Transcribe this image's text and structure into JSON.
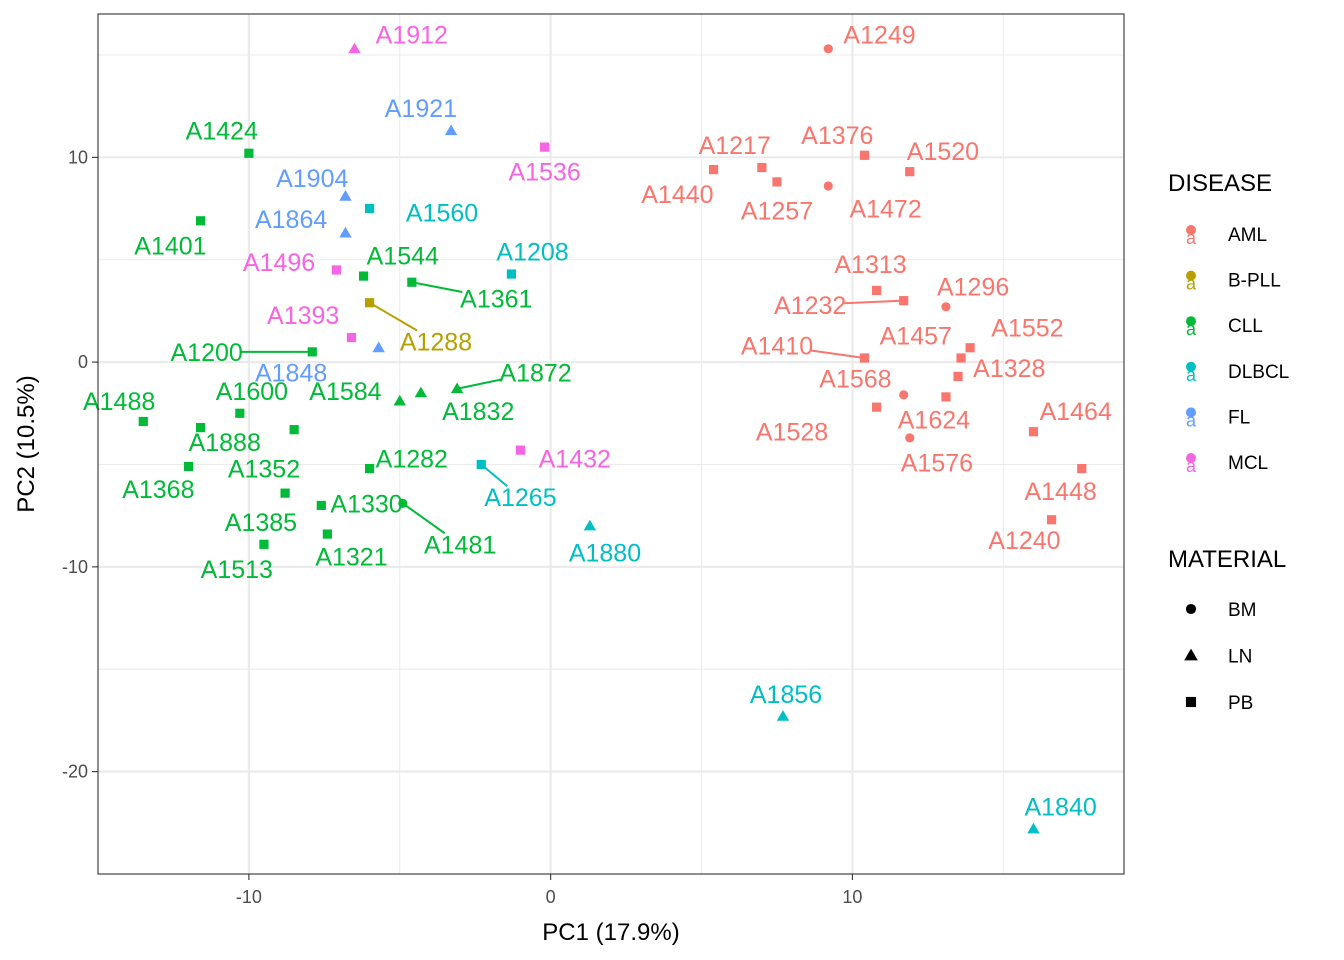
{
  "chart_data": {
    "type": "scatter",
    "xlabel": "PC1 (17.9%)",
    "ylabel": "PC2 (10.5%)",
    "xlim": [
      -15,
      19
    ],
    "ylim": [
      -25,
      17
    ],
    "x_ticks": [
      -10,
      0,
      10
    ],
    "y_ticks": [
      -20,
      -10,
      0,
      10
    ],
    "grid": true,
    "colors": {
      "AML": "#F8766D",
      "B-PLL": "#B79F00",
      "CLL": "#00BA38",
      "DLBCL": "#00BFC4",
      "FL": "#619CFF",
      "MCL": "#F564E3"
    },
    "legend_disease": {
      "title": "DISEASE",
      "entries": [
        "AML",
        "B-PLL",
        "CLL",
        "DLBCL",
        "FL",
        "MCL"
      ],
      "glyph": "a"
    },
    "legend_material": {
      "title": "MATERIAL",
      "entries": [
        {
          "name": "BM",
          "shape": "circle"
        },
        {
          "name": "LN",
          "shape": "triangle"
        },
        {
          "name": "PB",
          "shape": "square"
        }
      ]
    },
    "points": [
      {
        "id": "A1249",
        "x": 9.2,
        "y": 15.3,
        "disease": "AML",
        "material": "BM",
        "lx": 10.9,
        "ly": 16.0
      },
      {
        "id": "A1376",
        "x": 10.4,
        "y": 10.1,
        "disease": "AML",
        "material": "PB",
        "lx": 9.5,
        "ly": 11.1
      },
      {
        "id": "A1217",
        "x": 7.0,
        "y": 9.5,
        "disease": "AML",
        "material": "PB",
        "lx": 6.1,
        "ly": 10.6
      },
      {
        "id": "A1520",
        "x": 11.9,
        "y": 9.3,
        "disease": "AML",
        "material": "PB",
        "lx": 13.0,
        "ly": 10.3
      },
      {
        "id": "A1440",
        "x": 5.4,
        "y": 9.4,
        "disease": "AML",
        "material": "PB",
        "lx": 4.2,
        "ly": 8.2
      },
      {
        "id": "A1257",
        "x": 7.5,
        "y": 8.8,
        "disease": "AML",
        "material": "PB",
        "lx": 7.5,
        "ly": 7.4
      },
      {
        "id": "A1472",
        "x": 9.2,
        "y": 8.6,
        "disease": "AML",
        "material": "BM",
        "lx": 11.1,
        "ly": 7.5
      },
      {
        "id": "A1313",
        "x": 10.8,
        "y": 3.5,
        "disease": "AML",
        "material": "PB",
        "lx": 10.6,
        "ly": 4.8
      },
      {
        "id": "A1232",
        "x": 11.7,
        "y": 3.0,
        "disease": "AML",
        "material": "PB",
        "lx": 8.6,
        "ly": 2.8,
        "line": true
      },
      {
        "id": "A1296",
        "x": 13.1,
        "y": 2.7,
        "disease": "AML",
        "material": "BM",
        "lx": 14.0,
        "ly": 3.7
      },
      {
        "id": "A1552",
        "x": 13.9,
        "y": 0.7,
        "disease": "AML",
        "material": "PB",
        "lx": 15.8,
        "ly": 1.7
      },
      {
        "id": "A1457",
        "x": 13.6,
        "y": 0.2,
        "disease": "AML",
        "material": "PB",
        "lx": 12.1,
        "ly": 1.3
      },
      {
        "id": "A1410",
        "x": 10.4,
        "y": 0.2,
        "disease": "AML",
        "material": "PB",
        "lx": 7.5,
        "ly": 0.8,
        "line": true
      },
      {
        "id": "A1328",
        "x": 13.5,
        "y": -0.7,
        "disease": "AML",
        "material": "PB",
        "lx": 15.2,
        "ly": -0.3
      },
      {
        "id": "A1568",
        "x": 11.7,
        "y": -1.6,
        "disease": "AML",
        "material": "BM",
        "lx": 10.1,
        "ly": -0.8
      },
      {
        "id": "A1464",
        "x": 16.0,
        "y": -3.4,
        "disease": "AML",
        "material": "PB",
        "lx": 17.4,
        "ly": -2.4
      },
      {
        "id": "A1624",
        "x": 13.1,
        "y": -1.7,
        "disease": "AML",
        "material": "PB",
        "lx": 12.7,
        "ly": -2.8
      },
      {
        "id": "A1528",
        "x": 10.8,
        "y": -2.2,
        "disease": "AML",
        "material": "PB",
        "lx": 8.0,
        "ly": -3.4
      },
      {
        "id": "A1576",
        "x": 11.9,
        "y": -3.7,
        "disease": "AML",
        "material": "BM",
        "lx": 12.8,
        "ly": -4.9
      },
      {
        "id": "A1448",
        "x": 17.6,
        "y": -5.2,
        "disease": "AML",
        "material": "PB",
        "lx": 16.9,
        "ly": -6.3
      },
      {
        "id": "A1240",
        "x": 16.6,
        "y": -7.7,
        "disease": "AML",
        "material": "PB",
        "lx": 15.7,
        "ly": -8.7
      },
      {
        "id": "A1288",
        "x": -6.0,
        "y": 2.9,
        "disease": "B-PLL",
        "material": "PB",
        "lx": -3.8,
        "ly": 1.0,
        "line": true
      },
      {
        "id": "A1424",
        "x": -10.0,
        "y": 10.2,
        "disease": "CLL",
        "material": "PB",
        "lx": -10.9,
        "ly": 11.3
      },
      {
        "id": "A1401",
        "x": -11.6,
        "y": 6.9,
        "disease": "CLL",
        "material": "PB",
        "lx": -12.6,
        "ly": 5.7
      },
      {
        "id": "A1544",
        "x": -6.2,
        "y": 4.2,
        "disease": "CLL",
        "material": "PB",
        "lx": -4.9,
        "ly": 5.2
      },
      {
        "id": "A1361",
        "x": -4.6,
        "y": 3.9,
        "disease": "CLL",
        "material": "PB",
        "lx": -1.8,
        "ly": 3.1,
        "line": true
      },
      {
        "id": "A1200",
        "x": -7.9,
        "y": 0.5,
        "disease": "CLL",
        "material": "PB",
        "lx": -11.4,
        "ly": 0.5,
        "line": true
      },
      {
        "id": "A1872",
        "x": -3.1,
        "y": -1.3,
        "disease": "CLL",
        "material": "LN",
        "lx": -0.5,
        "ly": -0.5,
        "line": true
      },
      {
        "id": "A1488",
        "x": -13.5,
        "y": -2.9,
        "disease": "CLL",
        "material": "PB",
        "lx": -14.3,
        "ly": -1.9
      },
      {
        "id": "A1600",
        "x": -10.3,
        "y": -2.5,
        "disease": "CLL",
        "material": "PB",
        "lx": -9.9,
        "ly": -1.4
      },
      {
        "id": "A1584",
        "x": -4.3,
        "y": -1.5,
        "disease": "CLL",
        "material": "LN",
        "lx": -6.8,
        "ly": -1.4
      },
      {
        "id": "A1832",
        "x": -5.0,
        "y": -1.9,
        "disease": "CLL",
        "material": "LN",
        "lx": -2.4,
        "ly": -2.4
      },
      {
        "id": "A1888",
        "x": -11.6,
        "y": -3.2,
        "disease": "CLL",
        "material": "PB",
        "lx": -10.8,
        "ly": -3.9
      },
      {
        "id": "A1368",
        "x": -12.0,
        "y": -5.1,
        "disease": "CLL",
        "material": "PB",
        "lx": -13.0,
        "ly": -6.2
      },
      {
        "id": "A1352",
        "x": -8.5,
        "y": -3.3,
        "disease": "CLL",
        "material": "PB",
        "lx": -9.5,
        "ly": -5.2
      },
      {
        "id": "A1282",
        "x": -6.0,
        "y": -5.2,
        "disease": "CLL",
        "material": "PB",
        "lx": -4.6,
        "ly": -4.7
      },
      {
        "id": "A1330",
        "x": -7.6,
        "y": -7.0,
        "disease": "CLL",
        "material": "PB",
        "lx": -6.1,
        "ly": -6.9
      },
      {
        "id": "A1481",
        "x": -4.9,
        "y": -6.9,
        "disease": "CLL",
        "material": "BM",
        "lx": -3.0,
        "ly": -8.9,
        "line": true
      },
      {
        "id": "A1385",
        "x": -8.8,
        "y": -6.4,
        "disease": "CLL",
        "material": "PB",
        "lx": -9.6,
        "ly": -7.8
      },
      {
        "id": "A1321",
        "x": -7.4,
        "y": -8.4,
        "disease": "CLL",
        "material": "PB",
        "lx": -6.6,
        "ly": -9.5
      },
      {
        "id": "A1513",
        "x": -9.5,
        "y": -8.9,
        "disease": "CLL",
        "material": "PB",
        "lx": -10.4,
        "ly": -10.1
      },
      {
        "id": "A1560",
        "x": -6.0,
        "y": 7.5,
        "disease": "DLBCL",
        "material": "PB",
        "lx": -3.6,
        "ly": 7.3
      },
      {
        "id": "A1208",
        "x": -1.3,
        "y": 4.3,
        "disease": "DLBCL",
        "material": "PB",
        "lx": -0.6,
        "ly": 5.4
      },
      {
        "id": "A1265",
        "x": -2.3,
        "y": -5.0,
        "disease": "DLBCL",
        "material": "PB",
        "lx": -1.0,
        "ly": -6.6,
        "line": true
      },
      {
        "id": "A1880",
        "x": 1.3,
        "y": -8.0,
        "disease": "DLBCL",
        "material": "LN",
        "lx": 1.8,
        "ly": -9.3
      },
      {
        "id": "A1856",
        "x": 7.7,
        "y": -17.3,
        "disease": "DLBCL",
        "material": "LN",
        "lx": 7.8,
        "ly": -16.2
      },
      {
        "id": "A1840",
        "x": 16.0,
        "y": -22.8,
        "disease": "DLBCL",
        "material": "LN",
        "lx": 16.9,
        "ly": -21.7
      },
      {
        "id": "A1921",
        "x": -3.3,
        "y": 11.3,
        "disease": "FL",
        "material": "LN",
        "lx": -4.3,
        "ly": 12.4
      },
      {
        "id": "A1904",
        "x": -6.8,
        "y": 8.1,
        "disease": "FL",
        "material": "LN",
        "lx": -7.9,
        "ly": 9.0
      },
      {
        "id": "A1864",
        "x": -6.8,
        "y": 6.3,
        "disease": "FL",
        "material": "LN",
        "lx": -8.6,
        "ly": 7.0
      },
      {
        "id": "A1848",
        "x": -5.7,
        "y": 0.7,
        "disease": "FL",
        "material": "LN",
        "lx": -8.6,
        "ly": -0.5
      },
      {
        "id": "A1912",
        "x": -6.5,
        "y": 15.3,
        "disease": "MCL",
        "material": "LN",
        "lx": -4.6,
        "ly": 16.0
      },
      {
        "id": "A1536",
        "x": -0.2,
        "y": 10.5,
        "disease": "MCL",
        "material": "PB",
        "lx": -0.2,
        "ly": 9.3
      },
      {
        "id": "A1496",
        "x": -7.1,
        "y": 4.5,
        "disease": "MCL",
        "material": "PB",
        "lx": -9.0,
        "ly": 4.9
      },
      {
        "id": "A1393",
        "x": -6.6,
        "y": 1.2,
        "disease": "MCL",
        "material": "PB",
        "lx": -8.2,
        "ly": 2.3
      },
      {
        "id": "A1432",
        "x": -1.0,
        "y": -4.3,
        "disease": "MCL",
        "material": "PB",
        "lx": 0.8,
        "ly": -4.7
      }
    ]
  }
}
